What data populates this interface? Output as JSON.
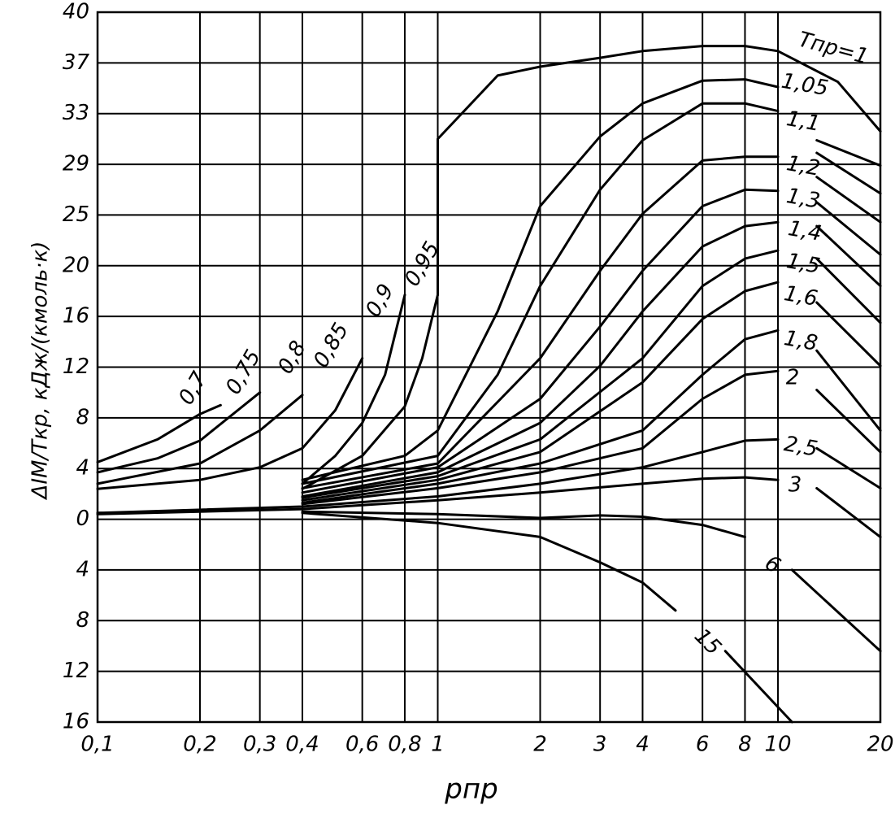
{
  "chart_data": {
    "type": "line",
    "y_label": "ΔIM/Tкр, кДж/(кмоль·к)",
    "x_label": "pпр",
    "log_x": true,
    "grid": true,
    "color": "#000000",
    "xlim": [
      0.1,
      20
    ],
    "xticks": [
      {
        "value": 0.1,
        "label": "0,1"
      },
      {
        "value": 0.2,
        "label": "0,2"
      },
      {
        "value": 0.3,
        "label": "0,3"
      },
      {
        "value": 0.4,
        "label": "0,4"
      },
      {
        "value": 0.6,
        "label": "0,6"
      },
      {
        "value": 0.8,
        "label": "0,8"
      },
      1,
      2,
      3,
      4,
      6,
      8,
      10,
      20
    ],
    "ylim": [
      -16,
      40
    ],
    "yticks": [
      40,
      37,
      33,
      29,
      25,
      20,
      16,
      12,
      8,
      4,
      0,
      {
        "value": -4,
        "label": "4"
      },
      {
        "value": -8,
        "label": "8"
      },
      {
        "value": -12,
        "label": "12"
      },
      {
        "value": -16,
        "label": "16"
      }
    ],
    "series": [
      {
        "name": "0,7",
        "x": [
          0.1,
          0.15,
          0.2,
          0.23
        ],
        "values": [
          4.5,
          6.3,
          8.3,
          9
        ]
      },
      {
        "name": "0,75",
        "x": [
          0.1,
          0.15,
          0.2,
          0.3
        ],
        "values": [
          3.7,
          4.8,
          6.2,
          10
        ]
      },
      {
        "name": "0,8",
        "x": [
          0.1,
          0.2,
          0.3,
          0.4
        ],
        "values": [
          2.8,
          4.4,
          7,
          9.8
        ]
      },
      {
        "name": "0,85",
        "x": [
          0.1,
          0.2,
          0.3,
          0.4,
          0.5,
          0.6
        ],
        "values": [
          2.4,
          3.1,
          4.1,
          5.6,
          8.6,
          12.7
        ]
      },
      {
        "name": "0,9",
        "x": [
          0.4,
          0.5,
          0.6,
          0.7,
          0.8
        ],
        "values": [
          2.8,
          5,
          7.6,
          11.4,
          17.7
        ]
      },
      {
        "name": "0,95",
        "x": [
          0.4,
          0.6,
          0.8,
          0.9,
          1
        ],
        "values": [
          2.4,
          5,
          8.9,
          12.7,
          17.7
        ]
      },
      {
        "name": "Tпр=1",
        "x": [
          1,
          1,
          1.5,
          2,
          3,
          4,
          6,
          8,
          10,
          15,
          20
        ],
        "values": [
          17.7,
          31,
          36,
          36.7,
          37.3,
          37.7,
          38,
          38,
          37.7,
          35.5,
          31.6
        ]
      },
      {
        "name": "1,05",
        "x": [
          0.4,
          0.8,
          1,
          1.5,
          2,
          3,
          4,
          6,
          8,
          10,
          11.5,
          13,
          20
        ],
        "values": [
          3.1,
          5,
          7,
          16.4,
          25.7,
          31.2,
          33.8,
          35.6,
          35.7,
          35.1,
          null,
          30.9,
          28.9
        ]
      },
      {
        "name": "1,1",
        "x": [
          0.4,
          1,
          1.5,
          2,
          3,
          4,
          6,
          8,
          10,
          11.5,
          13,
          20
        ],
        "values": [
          2.8,
          5,
          11.4,
          18.4,
          27,
          30.9,
          33.8,
          33.8,
          33.2,
          null,
          29.9,
          26.7
        ]
      },
      {
        "name": "1,2",
        "x": [
          0.4,
          1,
          2,
          3,
          4,
          6,
          8,
          10,
          11.5,
          13,
          20
        ],
        "values": [
          2.45,
          4.4,
          12.7,
          19.6,
          25.1,
          29.3,
          29.6,
          29.6,
          null,
          28,
          24.3
        ]
      },
      {
        "name": "1,3",
        "x": [
          0.4,
          1,
          2,
          3,
          4,
          6,
          8,
          10,
          11.5,
          13,
          20
        ],
        "values": [
          2.1,
          4.1,
          9.5,
          15.2,
          19.6,
          25.7,
          27,
          26.9,
          null,
          26,
          21.1
        ]
      },
      {
        "name": "1,4",
        "x": [
          0.4,
          1,
          2,
          3,
          4,
          6,
          8,
          10,
          11.5,
          13,
          20
        ],
        "values": [
          1.8,
          3.7,
          7.6,
          12.1,
          16.4,
          21.9,
          23.9,
          24.3,
          null,
          23.9,
          18.4
        ]
      },
      {
        "name": "1,5",
        "x": [
          0.4,
          1,
          2,
          4,
          6,
          8,
          10,
          11.5,
          13,
          20
        ],
        "values": [
          1.7,
          3.4,
          6.3,
          12.7,
          18.4,
          20.7,
          21.5,
          null,
          20.7,
          15.5
        ]
      },
      {
        "name": "1,6",
        "x": [
          0.4,
          1,
          2,
          4,
          6,
          8,
          10,
          11.5,
          13,
          20
        ],
        "values": [
          1.5,
          3.1,
          5.3,
          10.8,
          15.8,
          18,
          18.7,
          null,
          17.1,
          12.1
        ]
      },
      {
        "name": "1,8",
        "x": [
          0.4,
          1,
          2,
          4,
          6,
          8,
          10,
          11.5,
          13,
          20
        ],
        "values": [
          1.3,
          2.8,
          4.4,
          7,
          11.4,
          14.2,
          14.9,
          null,
          13.3,
          7
        ]
      },
      {
        "name": "2",
        "x": [
          0.4,
          1,
          2,
          4,
          6,
          8,
          10,
          11.5,
          13,
          20
        ],
        "values": [
          1.2,
          2.45,
          3.7,
          5.6,
          9.5,
          11.4,
          11.7,
          null,
          10.2,
          5.3
        ]
      },
      {
        "name": "2,5",
        "x": [
          0.1,
          0.4,
          1,
          2,
          4,
          6,
          8,
          10,
          11.5,
          13,
          20
        ],
        "values": [
          0.5,
          1,
          1.8,
          2.8,
          4.1,
          5.3,
          6.2,
          6.3,
          null,
          5.6,
          2.45
        ]
      },
      {
        "name": "3",
        "x": [
          0.1,
          0.4,
          1,
          2,
          4,
          6,
          8,
          10,
          11.5,
          13,
          20
        ],
        "values": [
          0.4,
          0.8,
          1.5,
          2.1,
          2.8,
          3.2,
          3.3,
          3.1,
          null,
          2.45,
          -1.4
        ]
      },
      {
        "name": "6",
        "x": [
          0.4,
          1,
          2,
          3,
          4,
          6,
          8,
          9.5,
          11,
          20
        ],
        "values": [
          0.6,
          0.4,
          0.1,
          0.3,
          0.2,
          -0.45,
          -1.4,
          null,
          -4,
          -10.4
        ]
      },
      {
        "name": "15",
        "x": [
          0.4,
          1,
          2,
          3,
          4,
          5,
          6,
          7,
          11
        ],
        "values": [
          0.5,
          -0.3,
          -1.4,
          -3.4,
          -5,
          -7.2,
          null,
          -10.4,
          -16
        ]
      }
    ]
  }
}
